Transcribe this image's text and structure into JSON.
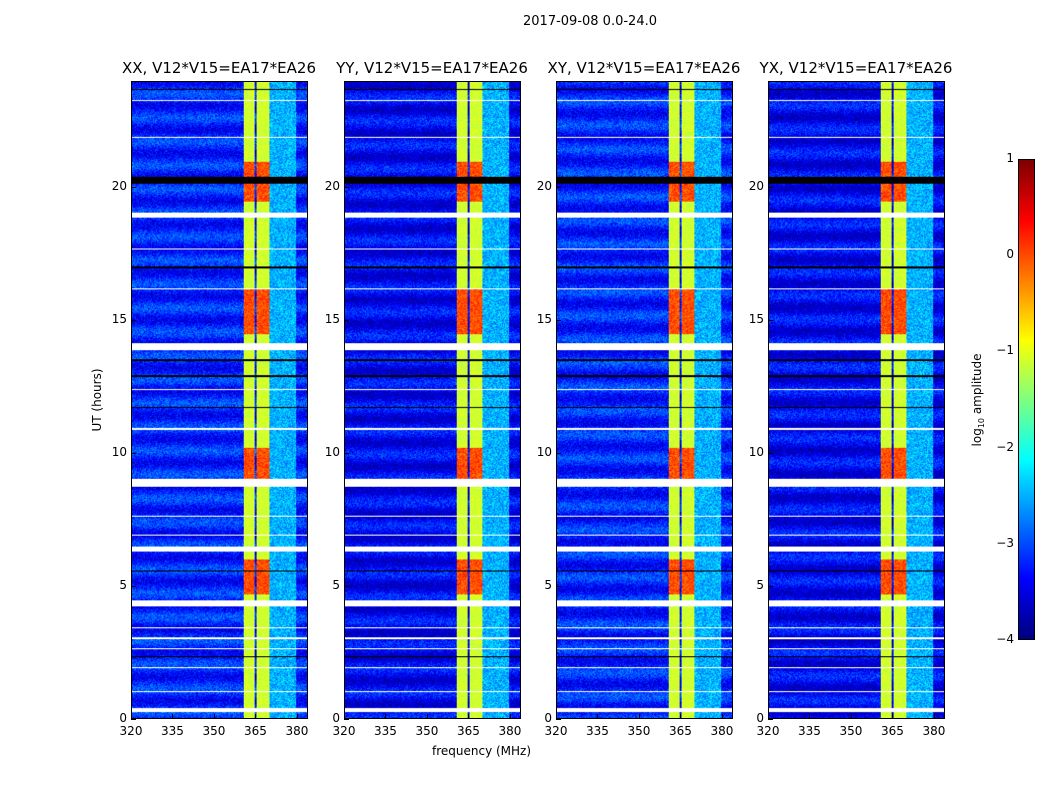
{
  "suptitle": "2017-09-08 0.0-24.0",
  "chart_data": {
    "type": "heatmap",
    "panels": [
      {
        "title": "XX, V12*V15=EA17*EA26"
      },
      {
        "title": "YY, V12*V15=EA17*EA26"
      },
      {
        "title": "XY, V12*V15=EA17*EA26"
      },
      {
        "title": "YX, V12*V15=EA17*EA26"
      }
    ],
    "xlabel": "frequency (MHz)",
    "ylabel": "UT (hours)",
    "xlim": [
      320,
      384
    ],
    "ylim": [
      0,
      24
    ],
    "xticks": [
      "320",
      "335",
      "350",
      "365",
      "380"
    ],
    "xtick_values": [
      320,
      335,
      350,
      365,
      380
    ],
    "yticks": [
      "0",
      "5",
      "10",
      "15",
      "20"
    ],
    "ytick_values": [
      0,
      5,
      10,
      15,
      20
    ],
    "colorbar": {
      "label": "log10 amplitude",
      "label_main": "log",
      "label_sub": "10",
      "label_rest": " amplitude",
      "colormap": "jet",
      "clim": [
        -4,
        1
      ],
      "ticks": [
        "−4",
        "−3",
        "−2",
        "−1",
        "0",
        "1"
      ],
      "tick_values": [
        -4,
        -3,
        -2,
        -1,
        0,
        1
      ]
    },
    "background_level": -3.3,
    "bright_channels_mhz": [
      [
        360.5,
        364.7
      ],
      [
        365.5,
        370.0
      ]
    ],
    "moderate_channels_mhz": [
      [
        370.0,
        380.0
      ]
    ],
    "hot_time_ranges_hours": [
      [
        4.7,
        6.0
      ],
      [
        9.0,
        10.2
      ],
      [
        14.5,
        16.2
      ],
      [
        19.5,
        21.0
      ]
    ],
    "flagged_white_hours": [
      [
        0.25,
        0.4
      ],
      [
        4.25,
        4.45
      ],
      [
        6.3,
        6.5
      ],
      [
        8.75,
        9.05
      ],
      [
        13.9,
        14.15
      ],
      [
        18.9,
        19.1
      ],
      [
        1.0,
        1.05
      ],
      [
        1.9,
        1.95
      ],
      [
        2.6,
        2.65
      ],
      [
        3.0,
        3.05
      ],
      [
        3.4,
        3.45
      ],
      [
        6.9,
        6.95
      ],
      [
        7.6,
        7.65
      ],
      [
        10.9,
        10.95
      ],
      [
        12.4,
        12.45
      ],
      [
        16.2,
        16.25
      ],
      [
        17.7,
        17.75
      ],
      [
        21.9,
        21.95
      ],
      [
        23.3,
        23.35
      ]
    ],
    "flagged_black_hours": [
      [
        20.2,
        20.45
      ],
      [
        5.55,
        5.6
      ],
      [
        11.7,
        11.75
      ],
      [
        12.9,
        12.95
      ],
      [
        17.0,
        17.05
      ],
      [
        13.5,
        13.55
      ],
      [
        23.7,
        23.75
      ],
      [
        2.3,
        2.35
      ]
    ]
  }
}
